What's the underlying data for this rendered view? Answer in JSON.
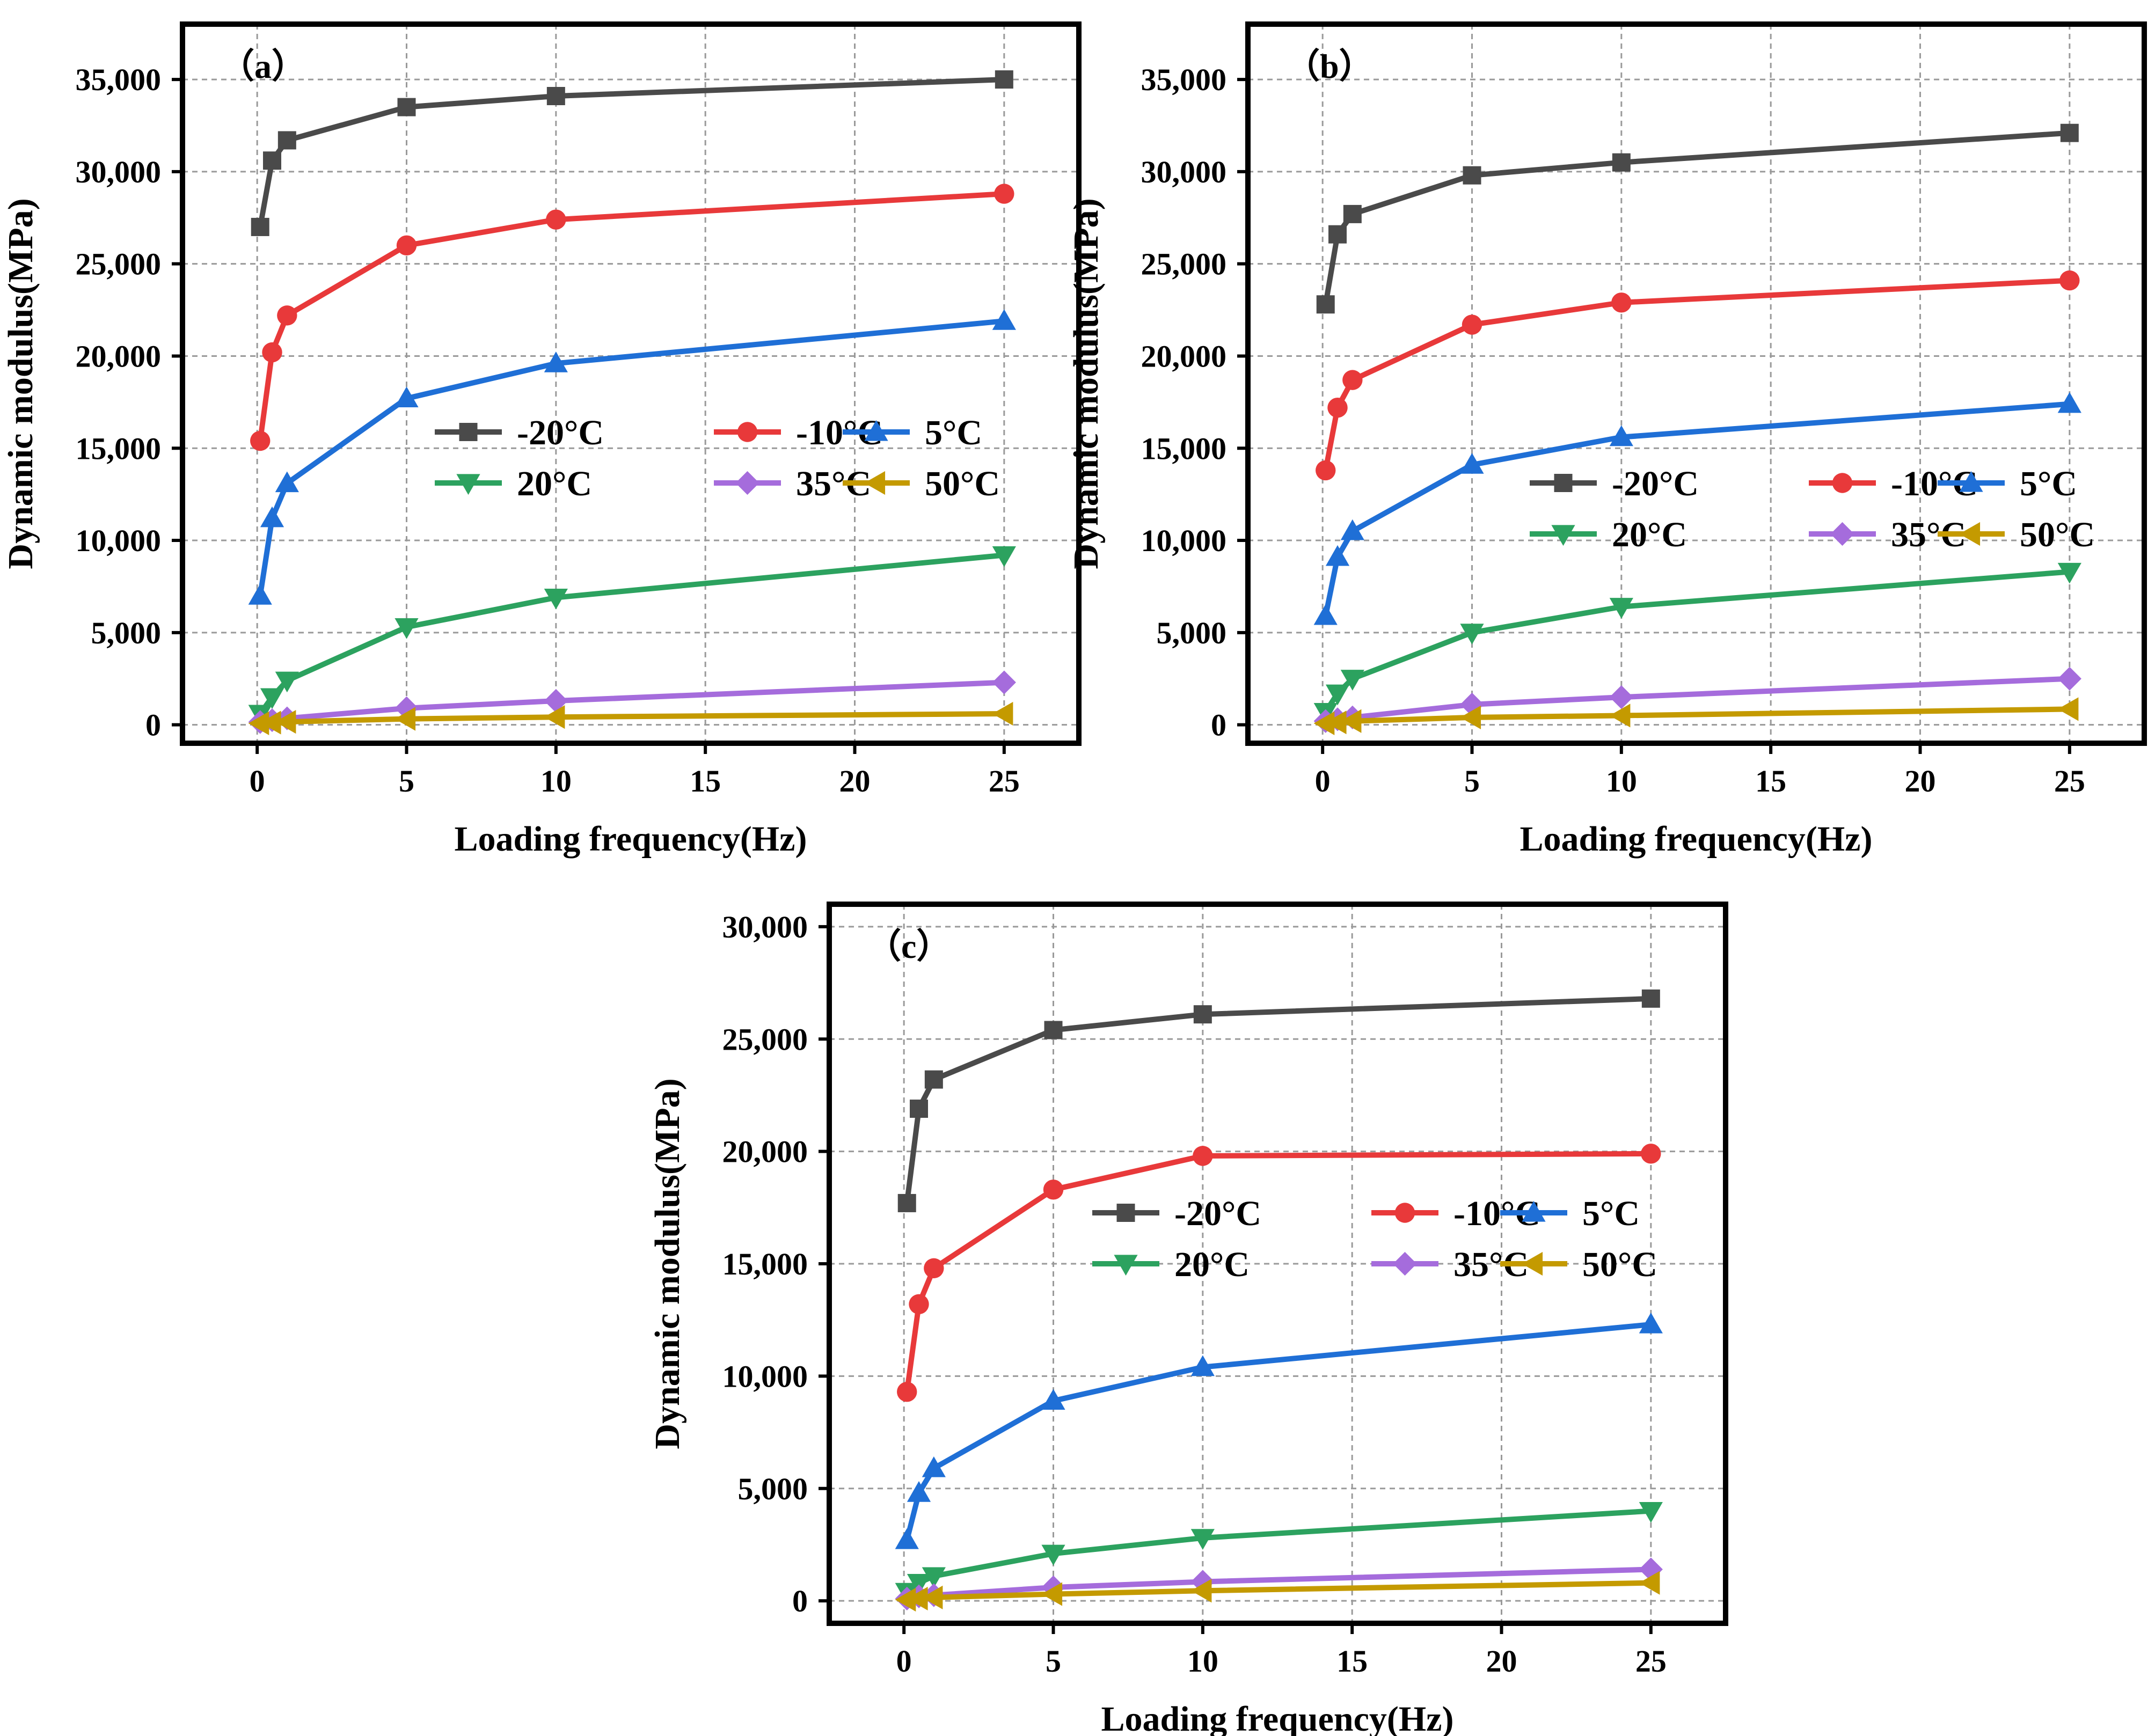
{
  "chart_data": [
    {
      "type": "line",
      "panel_label": "（a）",
      "xlabel": "Loading frequency(Hz)",
      "ylabel": "Dynamic modulus(MPa)",
      "xlim": [
        -2.5,
        27.5
      ],
      "ylim": [
        -1000,
        38000
      ],
      "xticks": [
        0,
        5,
        10,
        15,
        20,
        25
      ],
      "xtick_labels": [
        "0",
        "5",
        "10",
        "15",
        "20",
        "25"
      ],
      "yticks": [
        0,
        5000,
        10000,
        15000,
        20000,
        25000,
        30000,
        35000
      ],
      "ytick_labels": [
        "0",
        "5,000",
        "10,000",
        "15,000",
        "20,000",
        "25,000",
        "30,000",
        "35,000"
      ],
      "grid": true,
      "legend_position": "center-right",
      "x": [
        0.1,
        0.5,
        1,
        5,
        10,
        25
      ],
      "series": [
        {
          "name": "-20°C",
          "color": "#4a4a4a",
          "marker": "square",
          "values": [
            27000,
            30600,
            31700,
            33500,
            34100,
            35000
          ]
        },
        {
          "name": "-10°C",
          "color": "#e8393a",
          "marker": "circle",
          "values": [
            15400,
            20200,
            22200,
            26000,
            27400,
            28800
          ]
        },
        {
          "name": "5°C",
          "color": "#1f6fd6",
          "marker": "triangle-up",
          "values": [
            7000,
            11200,
            13100,
            17700,
            19600,
            21900
          ]
        },
        {
          "name": "20°C",
          "color": "#2ca25f",
          "marker": "triangle-down",
          "values": [
            600,
            1500,
            2400,
            5300,
            6900,
            9200
          ]
        },
        {
          "name": "35°C",
          "color": "#a56cdc",
          "marker": "diamond",
          "values": [
            150,
            250,
            350,
            900,
            1300,
            2300
          ]
        },
        {
          "name": "50°C",
          "color": "#c49a00",
          "marker": "triangle-left",
          "values": [
            80,
            120,
            160,
            320,
            420,
            600
          ]
        }
      ]
    },
    {
      "type": "line",
      "panel_label": "（b）",
      "xlabel": "Loading frequency(Hz)",
      "ylabel": "Dynamic modulus(MPa)",
      "xlim": [
        -2.5,
        27.5
      ],
      "ylim": [
        -1000,
        38000
      ],
      "xticks": [
        0,
        5,
        10,
        15,
        20,
        25
      ],
      "xtick_labels": [
        "0",
        "5",
        "10",
        "15",
        "20",
        "25"
      ],
      "yticks": [
        0,
        5000,
        10000,
        15000,
        20000,
        25000,
        30000,
        35000
      ],
      "ytick_labels": [
        "0",
        "5,000",
        "10,000",
        "15,000",
        "20,000",
        "25,000",
        "30,000",
        "35,000"
      ],
      "grid": true,
      "legend_position": "center-right",
      "x": [
        0.1,
        0.5,
        1,
        5,
        10,
        25
      ],
      "series": [
        {
          "name": "-20°C",
          "color": "#4a4a4a",
          "marker": "square",
          "values": [
            22800,
            26600,
            27700,
            29800,
            30500,
            32100
          ]
        },
        {
          "name": "-10°C",
          "color": "#e8393a",
          "marker": "circle",
          "values": [
            13800,
            17200,
            18700,
            21700,
            22900,
            24100
          ]
        },
        {
          "name": "5°C",
          "color": "#1f6fd6",
          "marker": "triangle-up",
          "values": [
            5900,
            9100,
            10500,
            14100,
            15600,
            17400
          ]
        },
        {
          "name": "20°C",
          "color": "#2ca25f",
          "marker": "triangle-down",
          "values": [
            700,
            1700,
            2500,
            5000,
            6400,
            8300
          ]
        },
        {
          "name": "35°C",
          "color": "#a56cdc",
          "marker": "diamond",
          "values": [
            200,
            300,
            400,
            1100,
            1500,
            2500
          ]
        },
        {
          "name": "50°C",
          "color": "#c49a00",
          "marker": "triangle-left",
          "values": [
            80,
            130,
            200,
            400,
            500,
            850
          ]
        }
      ]
    },
    {
      "type": "line",
      "panel_label": "（c）",
      "xlabel": "Loading frequency(Hz)",
      "ylabel": "Dynamic modulus(MPa)",
      "xlim": [
        -2.5,
        27.5
      ],
      "ylim": [
        -1000,
        31000
      ],
      "xticks": [
        0,
        5,
        10,
        15,
        20,
        25
      ],
      "xtick_labels": [
        "0",
        "5",
        "10",
        "15",
        "20",
        "25"
      ],
      "yticks": [
        0,
        5000,
        10000,
        15000,
        20000,
        25000,
        30000
      ],
      "ytick_labels": [
        "0",
        "5,000",
        "10,000",
        "15,000",
        "20,000",
        "25,000",
        "30,000"
      ],
      "grid": true,
      "legend_position": "center-right",
      "x": [
        0.1,
        0.5,
        1,
        5,
        10,
        25
      ],
      "series": [
        {
          "name": "-20°C",
          "color": "#4a4a4a",
          "marker": "square",
          "values": [
            17700,
            21900,
            23200,
            25400,
            26100,
            26800
          ]
        },
        {
          "name": "-10°C",
          "color": "#e8393a",
          "marker": "circle",
          "values": [
            9300,
            13200,
            14800,
            18300,
            19800,
            19900
          ]
        },
        {
          "name": "5°C",
          "color": "#1f6fd6",
          "marker": "triangle-up",
          "values": [
            2700,
            4800,
            5900,
            8900,
            10400,
            12300
          ]
        },
        {
          "name": "20°C",
          "color": "#2ca25f",
          "marker": "triangle-down",
          "values": [
            400,
            800,
            1100,
            2100,
            2800,
            4000
          ]
        },
        {
          "name": "35°C",
          "color": "#a56cdc",
          "marker": "diamond",
          "values": [
            100,
            200,
            250,
            600,
            850,
            1400
          ]
        },
        {
          "name": "50°C",
          "color": "#c49a00",
          "marker": "triangle-left",
          "values": [
            50,
            100,
            150,
            300,
            450,
            800
          ]
        }
      ]
    }
  ]
}
